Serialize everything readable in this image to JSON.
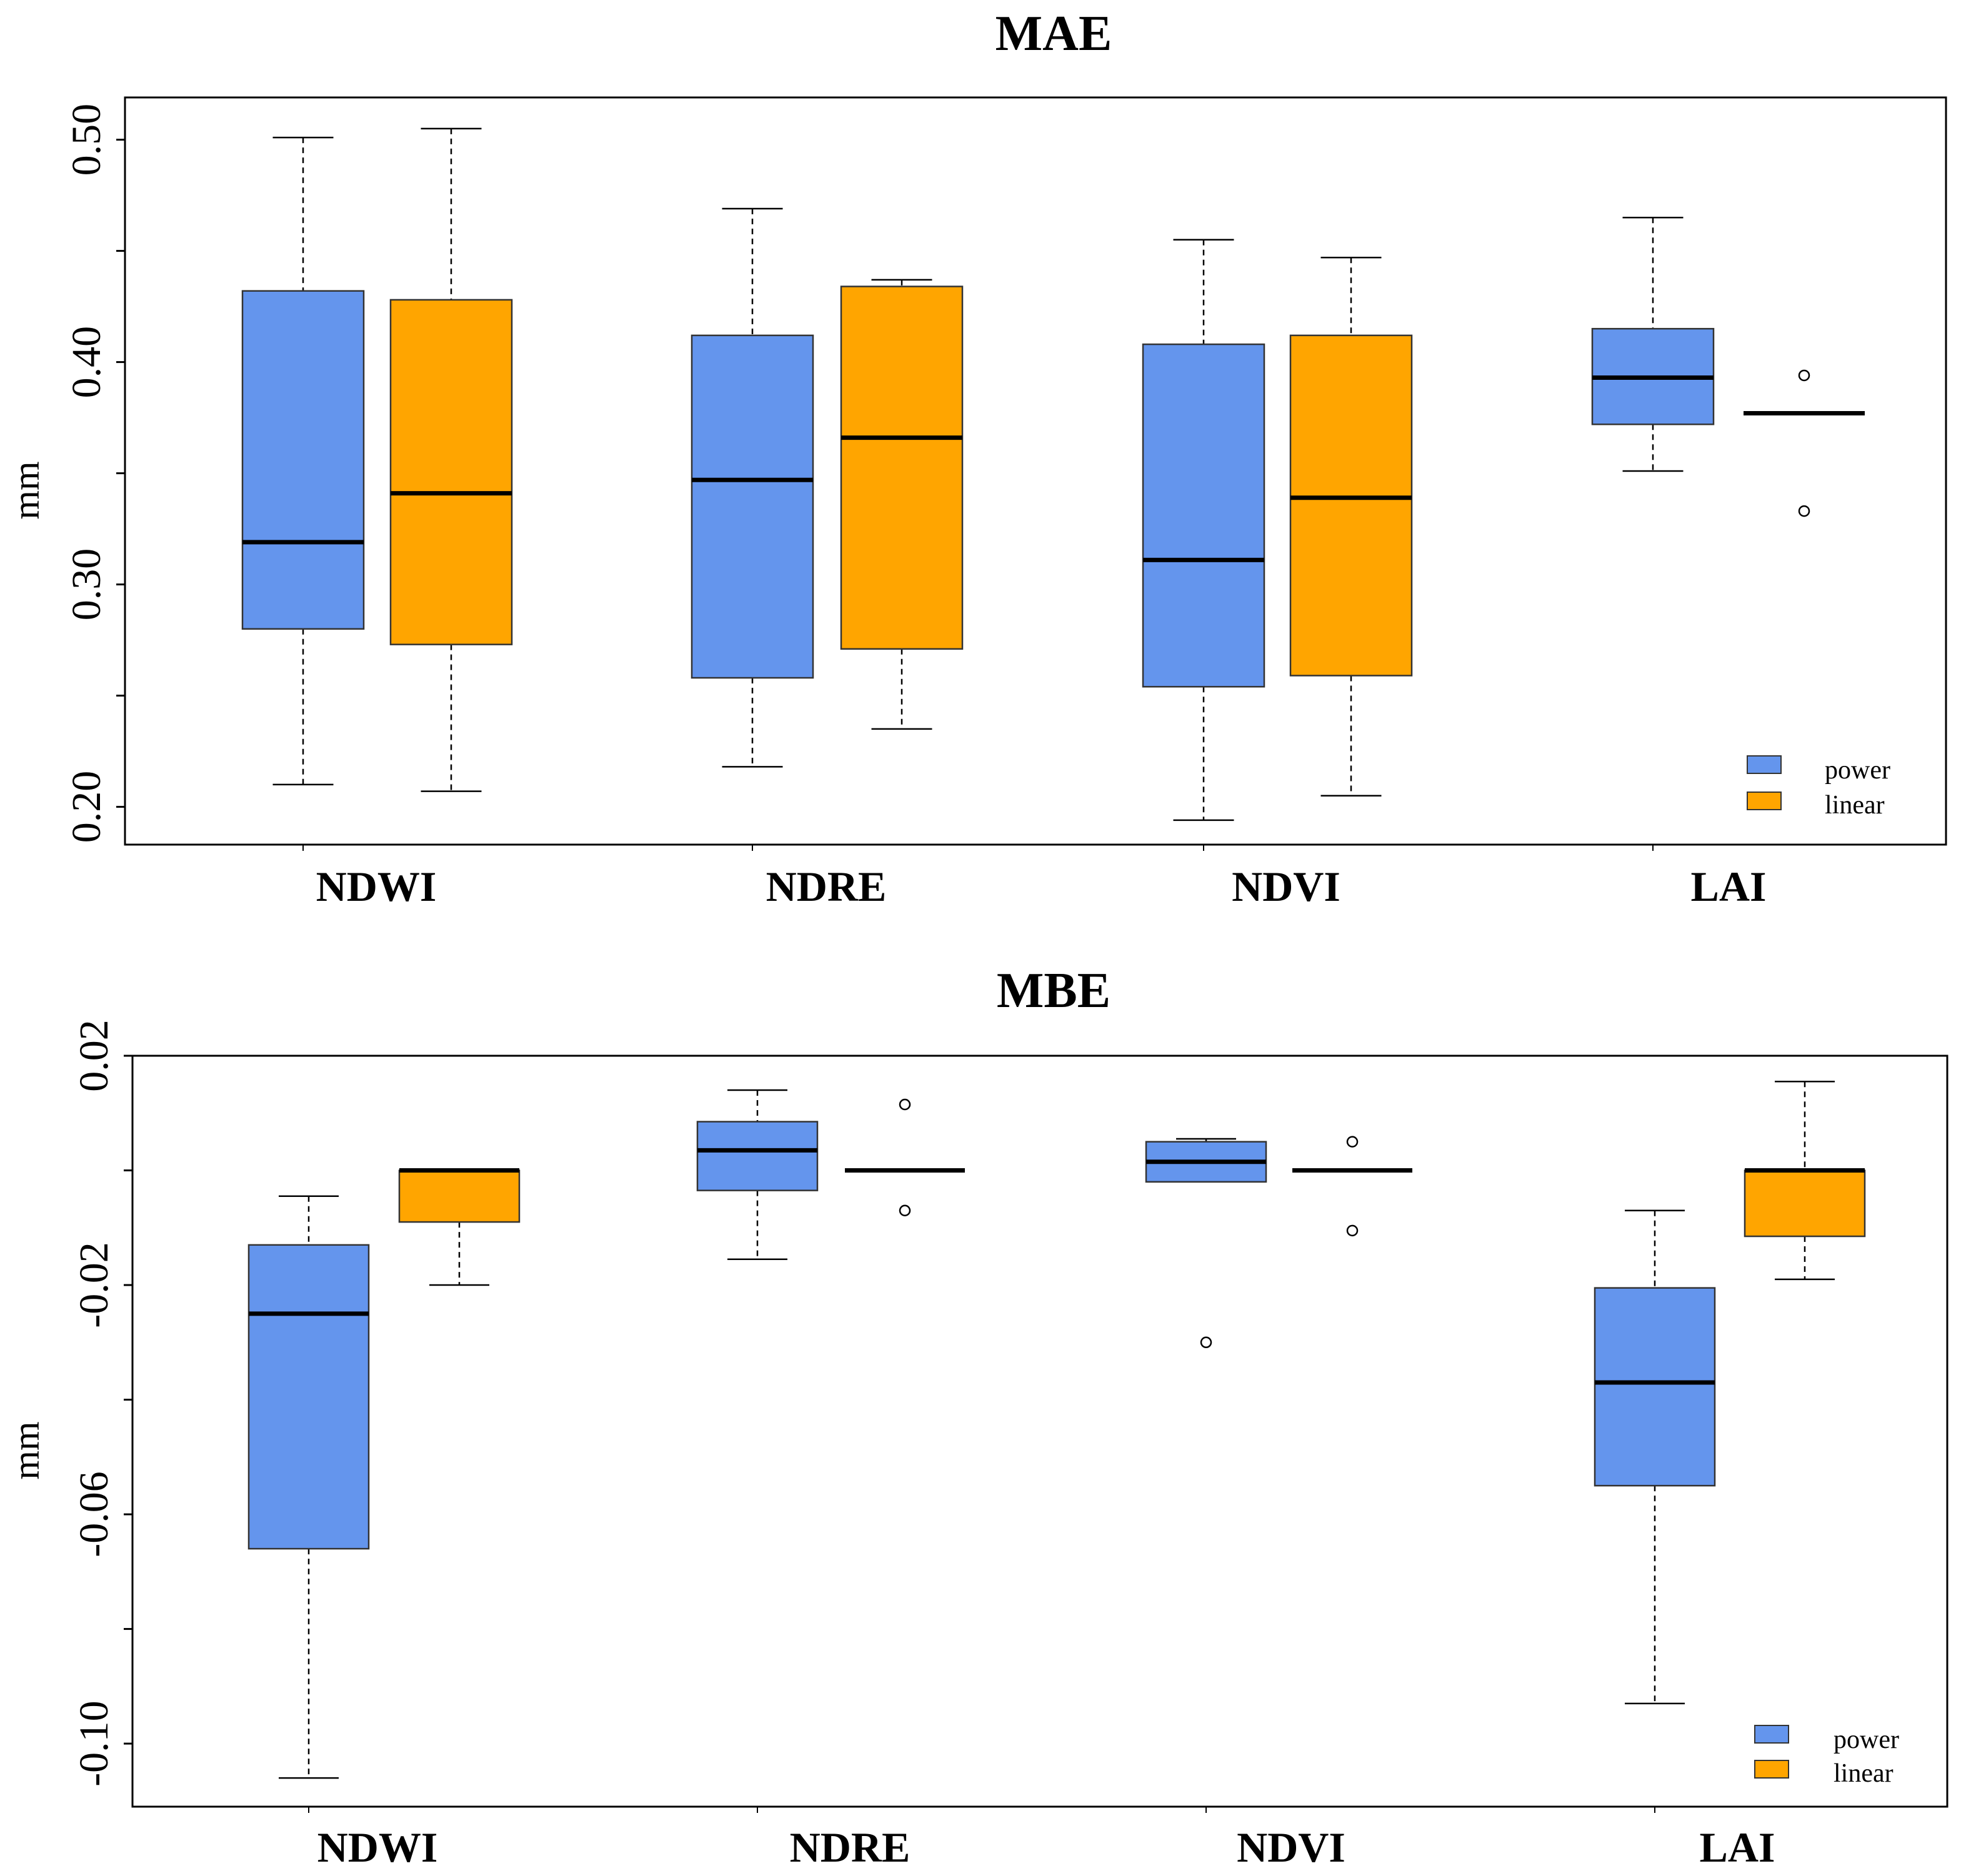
{
  "colors": {
    "power": "#6495ED",
    "linear": "#FFA500",
    "median": "#000000",
    "frame": "#000000"
  },
  "chart_data": [
    {
      "type": "boxplot",
      "title": "MAE",
      "ylabel": "mm",
      "ylim": [
        0.183,
        0.519
      ],
      "yticks": [
        0.2,
        0.25,
        0.3,
        0.35,
        0.4,
        0.45,
        0.5
      ],
      "ytick_labels": [
        "0.20",
        "",
        "0.30",
        "",
        "0.40",
        "",
        "0.50"
      ],
      "categories": [
        "NDWI",
        "NDRE",
        "NDVI",
        "LAI"
      ],
      "legend": {
        "position": "bottom-right",
        "entries": [
          "power",
          "linear"
        ]
      },
      "series": [
        {
          "name": "power",
          "boxes": [
            {
              "whisker_low": 0.21,
              "q1": 0.28,
              "median": 0.319,
              "q3": 0.432,
              "whisker_high": 0.501,
              "outliers": []
            },
            {
              "whisker_low": 0.218,
              "q1": 0.258,
              "median": 0.347,
              "q3": 0.412,
              "whisker_high": 0.469,
              "outliers": []
            },
            {
              "whisker_low": 0.194,
              "q1": 0.254,
              "median": 0.311,
              "q3": 0.408,
              "whisker_high": 0.455,
              "outliers": []
            },
            {
              "whisker_low": 0.351,
              "q1": 0.372,
              "median": 0.393,
              "q3": 0.415,
              "whisker_high": 0.465,
              "outliers": []
            }
          ]
        },
        {
          "name": "linear",
          "boxes": [
            {
              "whisker_low": 0.207,
              "q1": 0.273,
              "median": 0.341,
              "q3": 0.428,
              "whisker_high": 0.505,
              "outliers": []
            },
            {
              "whisker_low": 0.235,
              "q1": 0.271,
              "median": 0.366,
              "q3": 0.434,
              "whisker_high": 0.437,
              "outliers": []
            },
            {
              "whisker_low": 0.205,
              "q1": 0.259,
              "median": 0.339,
              "q3": 0.412,
              "whisker_high": 0.447,
              "outliers": []
            },
            {
              "whisker_low": 0.377,
              "q1": 0.377,
              "median": 0.377,
              "q3": 0.377,
              "whisker_high": 0.377,
              "outliers": [
                0.394,
                0.333
              ]
            }
          ]
        }
      ]
    },
    {
      "type": "boxplot",
      "title": "MBE",
      "ylabel": "mm",
      "ylim": [
        -0.111,
        0.02
      ],
      "yticks": [
        0.02,
        0.0,
        -0.02,
        -0.04,
        -0.06,
        -0.08,
        -0.1
      ],
      "ytick_labels": [
        "0.02",
        "",
        "-0.02",
        "",
        "-0.06",
        "",
        "-0.10"
      ],
      "categories": [
        "NDWI",
        "NDRE",
        "NDVI",
        "LAI"
      ],
      "legend": {
        "position": "bottom-right",
        "entries": [
          "power",
          "linear"
        ]
      },
      "series": [
        {
          "name": "power",
          "boxes": [
            {
              "whisker_low": -0.106,
              "q1": -0.066,
              "median": -0.025,
              "q3": -0.013,
              "whisker_high": -0.0045,
              "outliers": []
            },
            {
              "whisker_low": -0.0155,
              "q1": -0.0035,
              "median": 0.0035,
              "q3": 0.0085,
              "whisker_high": 0.014,
              "outliers": []
            },
            {
              "whisker_low": -0.002,
              "q1": -0.002,
              "median": 0.0015,
              "q3": 0.005,
              "whisker_high": 0.0055,
              "outliers": [
                -0.03
              ]
            },
            {
              "whisker_low": -0.093,
              "q1": -0.055,
              "median": -0.037,
              "q3": -0.0205,
              "whisker_high": -0.007,
              "outliers": []
            }
          ]
        },
        {
          "name": "linear",
          "boxes": [
            {
              "whisker_low": -0.02,
              "q1": -0.009,
              "median": 0.0,
              "q3": 0.0,
              "whisker_high": 0.0,
              "outliers": []
            },
            {
              "whisker_low": 0.0,
              "q1": 0.0,
              "median": 0.0,
              "q3": 0.0,
              "whisker_high": 0.0,
              "outliers": [
                0.0115,
                -0.007
              ]
            },
            {
              "whisker_low": 0.0,
              "q1": 0.0,
              "median": 0.0,
              "q3": 0.0,
              "whisker_high": 0.0,
              "outliers": [
                0.005,
                -0.0105
              ]
            },
            {
              "whisker_low": -0.019,
              "q1": -0.0115,
              "median": 0.0,
              "q3": 0.0,
              "whisker_high": 0.0155,
              "outliers": []
            }
          ]
        }
      ]
    }
  ]
}
